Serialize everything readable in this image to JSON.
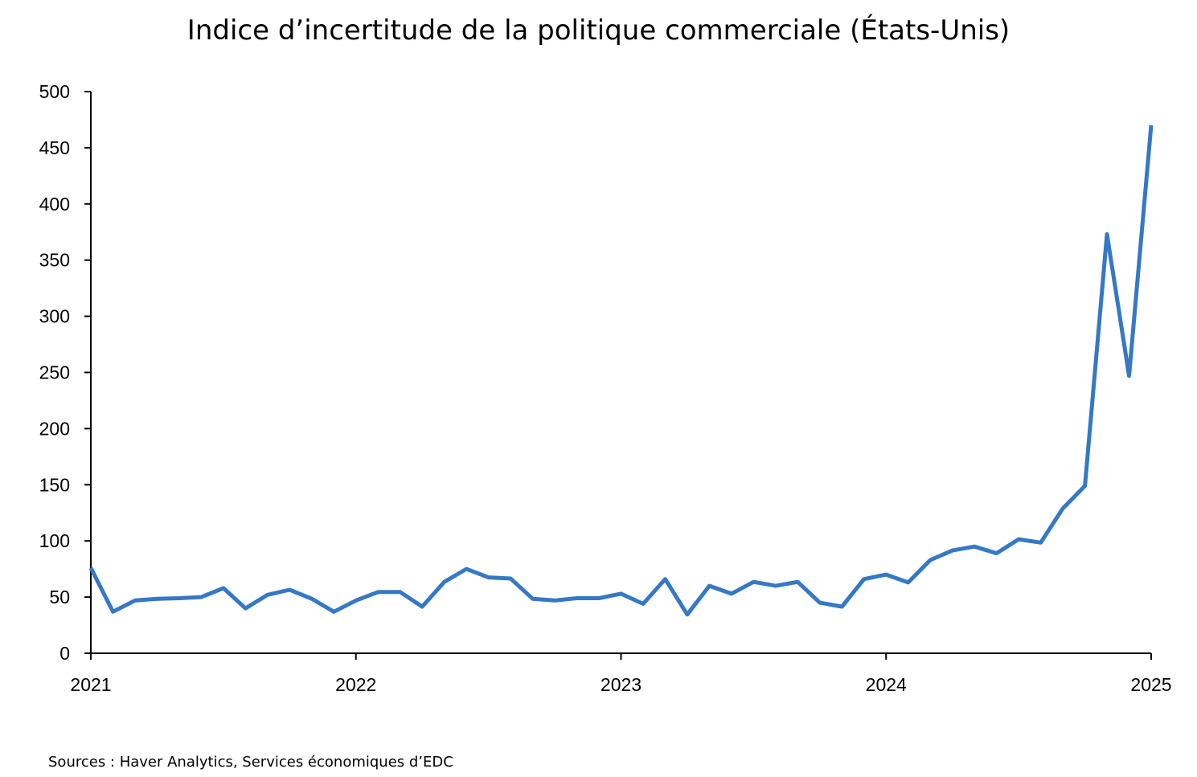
{
  "chart_data": {
    "type": "line",
    "title": "Indice d’incertitude de la politique commerciale (États-Unis)",
    "xlabel": "",
    "ylabel": "",
    "ylim": [
      0,
      500
    ],
    "yticks": [
      0,
      50,
      100,
      150,
      200,
      250,
      300,
      350,
      400,
      450,
      500
    ],
    "xticks": [
      "2021",
      "2022",
      "2023",
      "2024",
      "2025"
    ],
    "xlim": [
      "2021-01",
      "2025-01"
    ],
    "grid": false,
    "legend": "none",
    "line_color": "#3478c6",
    "series": [
      {
        "x": [
          "2021-01",
          "2021-02",
          "2021-03",
          "2021-04",
          "2021-05",
          "2021-06",
          "2021-07",
          "2021-08",
          "2021-09",
          "2021-10",
          "2021-11",
          "2021-12",
          "2022-01",
          "2022-02",
          "2022-03",
          "2022-04",
          "2022-05",
          "2022-06",
          "2022-07",
          "2022-08",
          "2022-09",
          "2022-10",
          "2022-11",
          "2022-12",
          "2023-01",
          "2023-02",
          "2023-03",
          "2023-04",
          "2023-05",
          "2023-06",
          "2023-07",
          "2023-08",
          "2023-09",
          "2023-10",
          "2023-11",
          "2023-12",
          "2024-01",
          "2024-02",
          "2024-03",
          "2024-04",
          "2024-05",
          "2024-06",
          "2024-07",
          "2024-08",
          "2024-09",
          "2024-10",
          "2024-11",
          "2024-12",
          "2025-01"
        ],
        "values": [
          76,
          37,
          47,
          48.5,
          49,
          50,
          58,
          40,
          52,
          56.5,
          48.5,
          37,
          47,
          54.5,
          54.5,
          41.5,
          63.5,
          75,
          67.5,
          66.5,
          48.5,
          47,
          49,
          49,
          53,
          44,
          66,
          34.5,
          60,
          53,
          63.5,
          60,
          63.5,
          45,
          41.5,
          66,
          70,
          63,
          83,
          91.5,
          95,
          89,
          101.5,
          98.5,
          129,
          149,
          373,
          247,
          470
        ]
      }
    ]
  },
  "footer": {
    "source": "Sources : Haver Analytics, Services économiques d’EDC"
  }
}
